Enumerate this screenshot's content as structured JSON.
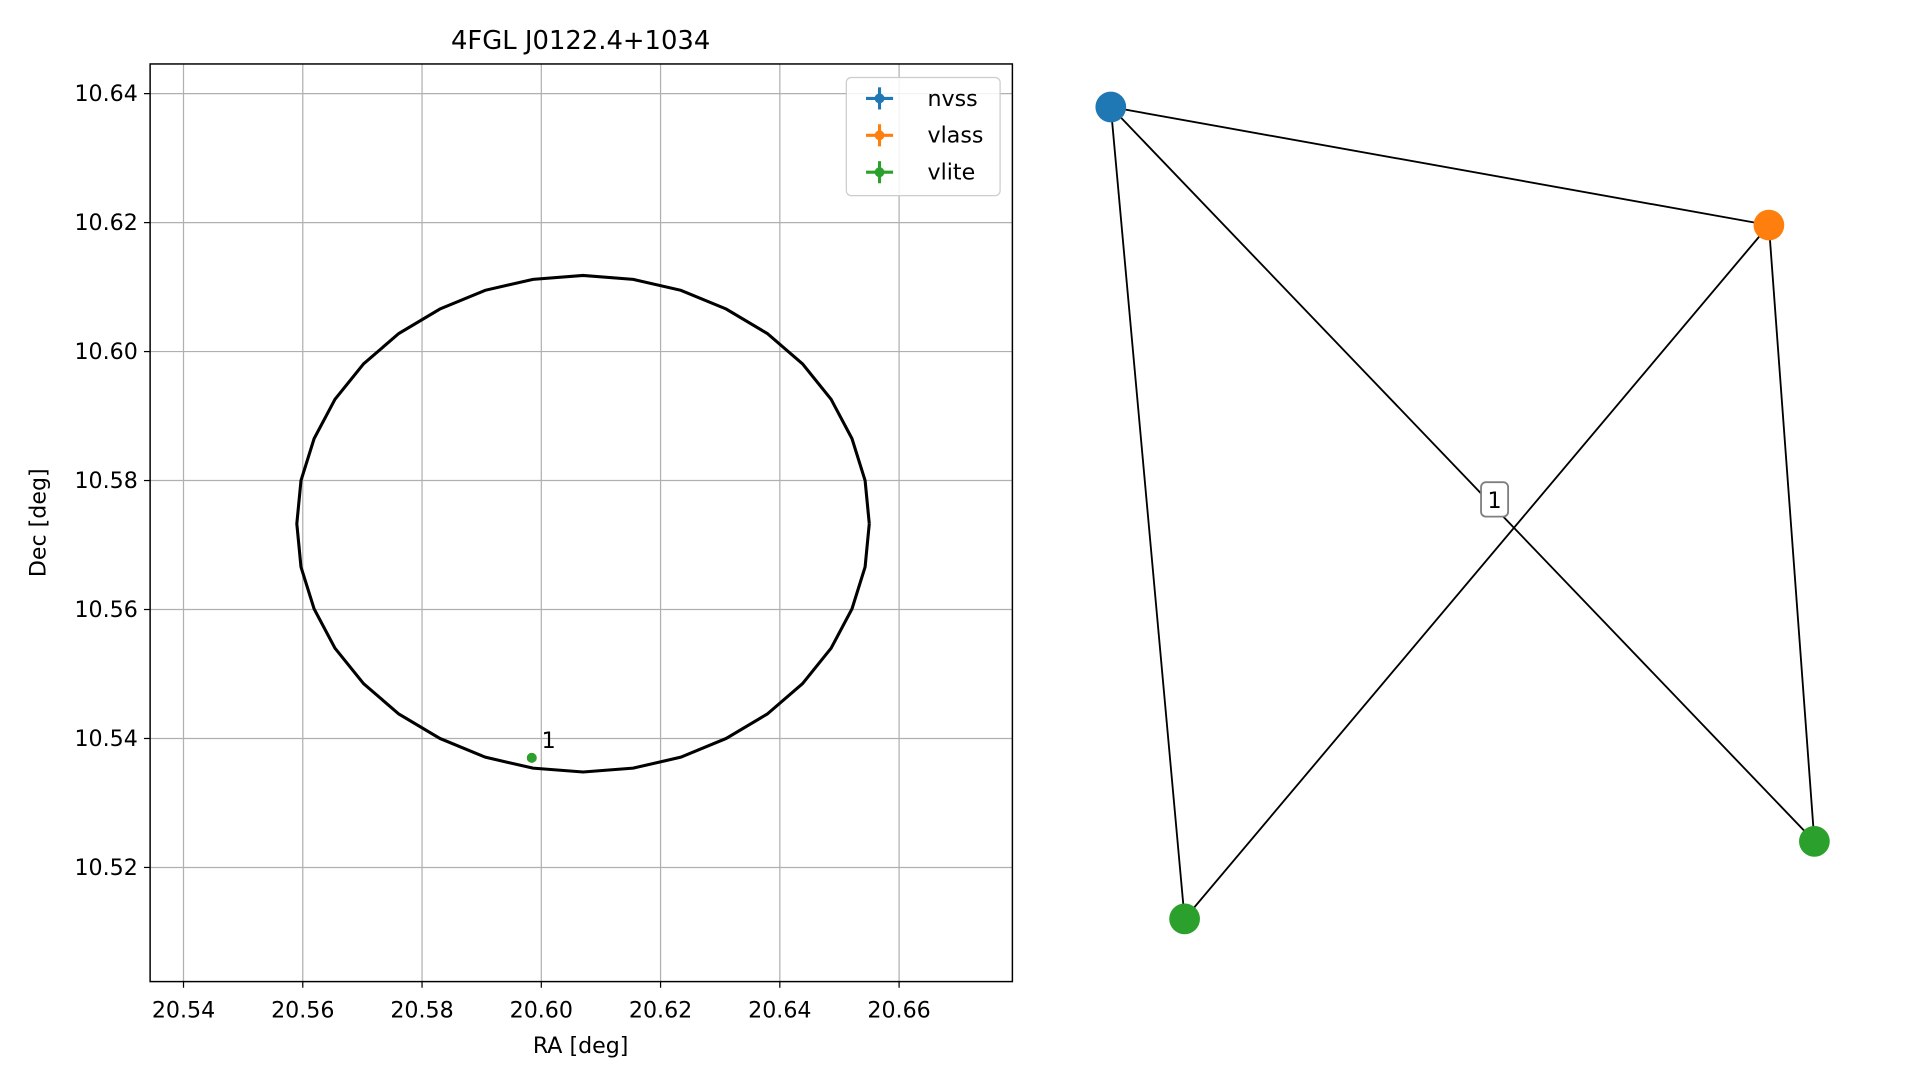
{
  "chart_data": [
    {
      "type": "scatter",
      "title": "4FGL J0122.4+1034",
      "xlabel": "RA [deg]",
      "ylabel": "Dec [deg]",
      "xlim": [
        20.5344,
        20.679
      ],
      "ylim": [
        10.5023,
        10.6446
      ],
      "xticks": [
        20.54,
        20.56,
        20.58,
        {
          "value": 20.6,
          "label": "20.60"
        },
        20.62,
        20.64,
        20.66
      ],
      "yticks": [
        10.52,
        10.54,
        10.56,
        10.58,
        {
          "value": 10.6,
          "label": "10.60"
        },
        10.62,
        10.64
      ],
      "grid": true,
      "legend": "upper right",
      "series": [
        {
          "name": "nvss",
          "color": "#1f77b4",
          "x": [
            20.5984
          ],
          "y": [
            10.537
          ]
        },
        {
          "name": "vlass",
          "color": "#ff7f0e",
          "x": [
            20.5984
          ],
          "y": [
            10.537
          ]
        },
        {
          "name": "vlite",
          "color": "#2ca02c",
          "x": [
            20.5984
          ],
          "y": [
            10.537
          ]
        }
      ],
      "annotations": [
        {
          "text": "1"
        }
      ],
      "ellipse": {
        "color": "#000000",
        "x": [
          20.655,
          20.6543,
          20.6521,
          20.6486,
          20.6438,
          20.6379,
          20.631,
          20.6234,
          20.6154,
          20.607,
          20.5986,
          20.5906,
          20.583,
          20.5761,
          20.5702,
          20.5654,
          20.5619,
          20.5597,
          20.559,
          20.5597,
          20.5619,
          20.5654,
          20.5702,
          20.5761,
          20.583,
          20.5906,
          20.5986,
          20.607,
          20.6154,
          20.6234,
          20.631,
          20.6379,
          20.6438,
          20.6486,
          20.6521,
          20.6543,
          20.655
        ],
        "y": [
          10.5733,
          10.58,
          10.5865,
          10.5926,
          10.5981,
          10.6028,
          10.6066,
          10.6095,
          10.6112,
          10.6118,
          10.6112,
          10.6095,
          10.6066,
          10.6028,
          10.5981,
          10.5926,
          10.5865,
          10.58,
          10.5733,
          10.5666,
          10.5601,
          10.554,
          10.5485,
          10.5438,
          10.54,
          10.5371,
          10.5354,
          10.5348,
          10.5354,
          10.5371,
          10.54,
          10.5438,
          10.5485,
          10.554,
          10.5601,
          10.5666,
          10.5733
        ]
      }
    },
    {
      "type": "network",
      "nodes": [
        {
          "color": "#1f77b4"
        },
        {
          "color": "#ff7f0e"
        },
        {
          "color": "#2ca02c"
        },
        {
          "color": "#2ca02c"
        }
      ],
      "edges": [
        [
          0,
          1
        ],
        [
          0,
          2
        ],
        [
          0,
          3
        ],
        [
          1,
          2
        ],
        [
          1,
          3
        ]
      ],
      "edge_labels": [
        {
          "text": "1"
        }
      ]
    }
  ]
}
